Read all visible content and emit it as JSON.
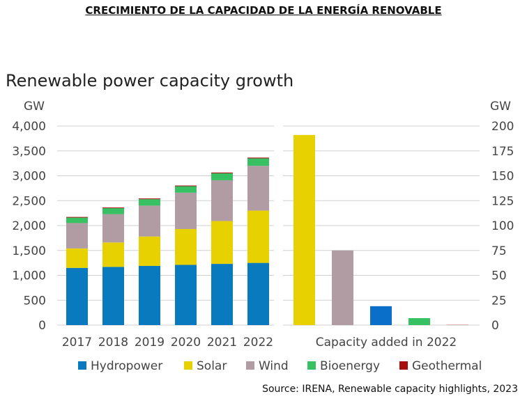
{
  "page_title": "CRECIMIENTO DE LA CAPACIDAD DE LA ENERGÍA RENOVABLE",
  "source": "Source: IRENA, Renewable capacity highlights, 2023",
  "chart_data": [
    {
      "type": "bar",
      "stacked": true,
      "title": "Renewable power capacity growth",
      "ylabel": "GW",
      "ylim": [
        0,
        4000
      ],
      "yticks": [
        "0",
        "500",
        "1,000",
        "1,500",
        "2,000",
        "2,500",
        "3,000",
        "3,500",
        "4,000"
      ],
      "ytick_values": [
        0,
        500,
        1000,
        1500,
        2000,
        2500,
        3000,
        3500,
        4000
      ],
      "categories": [
        "2017",
        "2018",
        "2019",
        "2020",
        "2021",
        "2022"
      ],
      "series": [
        {
          "name": "Hydropower",
          "color": "#0a7abf",
          "values": [
            1150,
            1170,
            1190,
            1210,
            1230,
            1250
          ]
        },
        {
          "name": "Solar",
          "color": "#e8d100",
          "values": [
            390,
            490,
            590,
            720,
            860,
            1050
          ]
        },
        {
          "name": "Wind",
          "color": "#b09ca2",
          "values": [
            510,
            570,
            620,
            730,
            820,
            900
          ]
        },
        {
          "name": "Bioenergy",
          "color": "#38c163",
          "values": [
            110,
            120,
            130,
            130,
            140,
            150
          ]
        },
        {
          "name": "Geothermal",
          "color": "#a80d0d",
          "values": [
            13,
            13,
            14,
            14,
            15,
            15
          ]
        }
      ]
    },
    {
      "type": "bar",
      "title": "",
      "ylabel": "GW",
      "ylim": [
        0,
        200
      ],
      "yticks": [
        "0",
        "25",
        "50",
        "75",
        "100",
        "125",
        "150",
        "175",
        "200"
      ],
      "ytick_values": [
        0,
        25,
        50,
        75,
        100,
        125,
        150,
        175,
        200
      ],
      "xlabel": "Capacity added in 2022",
      "categories": [
        "Solar",
        "Wind",
        "Hydropower",
        "Bioenergy",
        "Geothermal"
      ],
      "values": [
        191,
        75,
        19,
        7,
        0.2
      ],
      "colors": [
        "#e8d100",
        "#b09ca2",
        "#0a6fc8",
        "#38c163",
        "#a80d0d"
      ]
    }
  ],
  "legend": [
    {
      "label": "Hydropower",
      "color": "#0a7abf"
    },
    {
      "label": "Solar",
      "color": "#e8d100"
    },
    {
      "label": "Wind",
      "color": "#b09ca2"
    },
    {
      "label": "Bioenergy",
      "color": "#38c163"
    },
    {
      "label": "Geothermal",
      "color": "#a80d0d"
    }
  ]
}
